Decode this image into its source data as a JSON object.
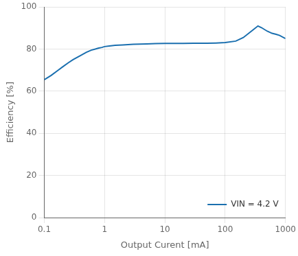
{
  "chart_data": {
    "type": "line",
    "xlabel": "Output Curent [mA]",
    "ylabel": "Efficiency [%]",
    "log": "x",
    "xlim": [
      0.1,
      1000
    ],
    "xticks": [
      0.1,
      1,
      10,
      100,
      1000
    ],
    "ylim": [
      0,
      100
    ],
    "yticks": [
      0,
      20,
      40,
      60,
      80,
      100
    ],
    "grid": true,
    "legend": "lower right",
    "series": [
      {
        "name": "VIN = 4.2 V",
        "color": "#1a6faf",
        "x": [
          0.1,
          0.13,
          0.17,
          0.2,
          0.25,
          0.3,
          0.4,
          0.5,
          0.6,
          0.7,
          0.8,
          0.9,
          1.0,
          1.2,
          1.5,
          2.0,
          3.0,
          5.0,
          7.0,
          10.0,
          15.0,
          20.0,
          30.0,
          50.0,
          70.0,
          100.0,
          150.0,
          200.0,
          300.0,
          350.0,
          400.0,
          500.0,
          600.0,
          700.0,
          800.0,
          1000.0
        ],
        "values": [
          65.5,
          67.5,
          70.0,
          71.5,
          73.5,
          75.0,
          77.0,
          78.5,
          79.5,
          80.0,
          80.5,
          80.8,
          81.2,
          81.5,
          81.8,
          82.0,
          82.3,
          82.5,
          82.6,
          82.7,
          82.7,
          82.7,
          82.8,
          82.8,
          82.9,
          83.1,
          83.8,
          85.5,
          89.5,
          91.0,
          90.2,
          88.5,
          87.5,
          87.0,
          86.5,
          85.0
        ]
      }
    ]
  }
}
